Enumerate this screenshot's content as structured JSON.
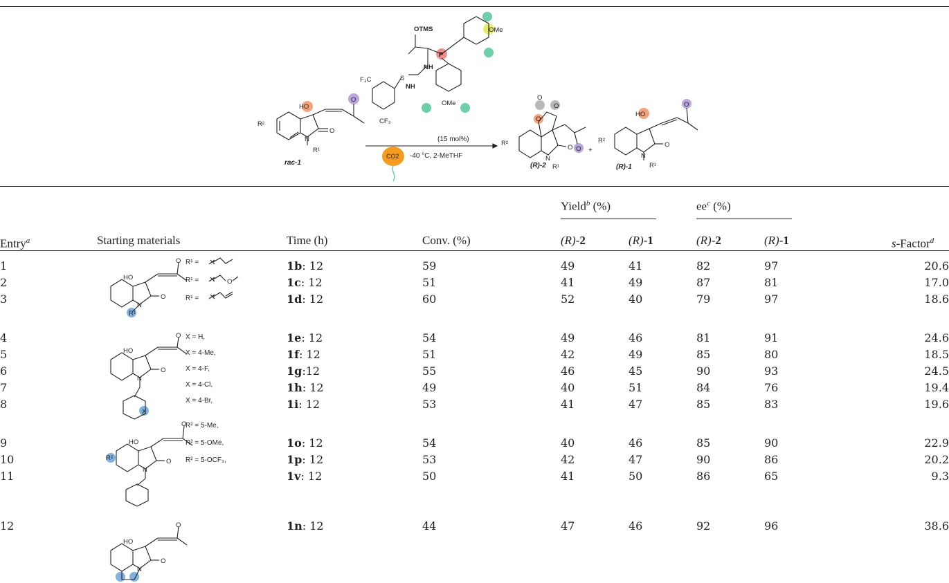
{
  "scheme": {
    "substrate_label": "rac-1",
    "catalyst_loading": "(15 mol%)",
    "conditions": "-40 °C, 2-MeTHF",
    "co2": "CO2",
    "product_2": "(R)-2",
    "product_1": "(R)-1",
    "otms": "OTMS",
    "ome_top": "OMe",
    "ome_bottom": "OMe",
    "cf3_top": "F3C",
    "cf3_bottom": "CF3",
    "nh_upper": "NH",
    "nh_lower": "NH",
    "s": "S",
    "p": "P",
    "plus": "+"
  },
  "table": {
    "headers": {
      "entry": "Entry",
      "entry_sup": "a",
      "starting": "Starting materials",
      "time": "Time (h)",
      "conv": "Conv. (%)",
      "yield": "Yield",
      "yield_sup": "b",
      "yield_unit": " (%)",
      "ee": "ee",
      "ee_sup": "c",
      "ee_unit": " (%)",
      "r2_prefix": "(R)-",
      "r2_num": "2",
      "r1_prefix": "(R)-",
      "r1_num": "1",
      "sfactor": "s-Factor",
      "sfactor_sup": "d"
    },
    "groups": {
      "g1": {
        "r1_a": "R¹ =",
        "r1_b": "R¹ =",
        "r1_c": "R¹ ="
      },
      "g2": {
        "x1": "X = H,",
        "x2": "X = 4-Me,",
        "x3": "X = 4-F,",
        "x4": "X = 4-Cl,",
        "x5": "X = 4-Br,"
      },
      "g3": {
        "r2_a": "R² = 5-Me,",
        "r2_b": "R² = 5-OMe,",
        "r2_c": "R² = 5-OCF₃,"
      }
    },
    "rows": [
      {
        "entry": "1",
        "cmpd": "1b",
        "time": ": 12",
        "conv": "59",
        "y2": "49",
        "y1": "41",
        "ee2": "82",
        "ee1": "97",
        "s": "20.6"
      },
      {
        "entry": "2",
        "cmpd": "1c",
        "time": ": 12",
        "conv": "51",
        "y2": "41",
        "y1": "49",
        "ee2": "87",
        "ee1": "81",
        "s": "17.0"
      },
      {
        "entry": "3",
        "cmpd": "1d",
        "time": ": 12",
        "conv": "60",
        "y2": "52",
        "y1": "40",
        "ee2": "79",
        "ee1": "97",
        "s": "18.6"
      },
      {
        "entry": "4",
        "cmpd": "1e",
        "time": ": 12",
        "conv": "54",
        "y2": "49",
        "y1": "46",
        "ee2": "81",
        "ee1": "91",
        "s": "24.6"
      },
      {
        "entry": "5",
        "cmpd": "1f",
        "time": ": 12",
        "conv": "51",
        "y2": "42",
        "y1": "49",
        "ee2": "85",
        "ee1": "80",
        "s": "18.5"
      },
      {
        "entry": "6",
        "cmpd": "1g",
        "time": ":12",
        "conv": "55",
        "y2": "46",
        "y1": "45",
        "ee2": "90",
        "ee1": "93",
        "s": "24.5"
      },
      {
        "entry": "7",
        "cmpd": "1h",
        "time": ": 12",
        "conv": "49",
        "y2": "40",
        "y1": "51",
        "ee2": "84",
        "ee1": "76",
        "s": "19.4"
      },
      {
        "entry": "8",
        "cmpd": "1i",
        "time": ": 12",
        "conv": "53",
        "y2": "41",
        "y1": "47",
        "ee2": "85",
        "ee1": "83",
        "s": "19.6"
      },
      {
        "entry": "9",
        "cmpd": "1o",
        "time": ": 12",
        "conv": "54",
        "y2": "40",
        "y1": "46",
        "ee2": "85",
        "ee1": "90",
        "s": "22.9"
      },
      {
        "entry": "10",
        "cmpd": "1p",
        "time": ": 12",
        "conv": "53",
        "y2": "42",
        "y1": "47",
        "ee2": "90",
        "ee1": "86",
        "s": "20.2"
      },
      {
        "entry": "11",
        "cmpd": "1v",
        "time": ": 12",
        "conv": "50",
        "y2": "41",
        "y1": "50",
        "ee2": "86",
        "ee1": "65",
        "s": "9.3"
      },
      {
        "entry": "12",
        "cmpd": "1n",
        "time": ": 12",
        "conv": "44",
        "y2": "47",
        "y1": "46",
        "ee2": "92",
        "ee1": "96",
        "s": "38.6"
      }
    ]
  },
  "colors": {
    "orange": "#f4a27c",
    "purple": "#b9a6dc",
    "teal": "#6dcfa8",
    "yellow": "#e4ee6a",
    "pink": "#f28c8c",
    "grey": "#b8b8b8",
    "blue": "#7fb2e0",
    "balloon": "#f39c1e"
  }
}
